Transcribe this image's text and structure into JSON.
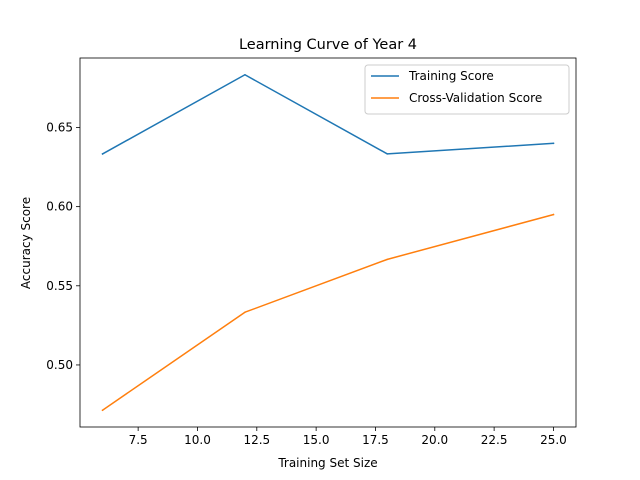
{
  "chart_data": {
    "type": "line",
    "title": "Learning Curve of Year 4",
    "xlabel": "Training Set Size",
    "ylabel": "Accuracy Score",
    "x": [
      6,
      12,
      18,
      25
    ],
    "series": [
      {
        "name": "Training Score",
        "color": "#1f77b4",
        "values": [
          0.6333,
          0.6833,
          0.6333,
          0.64
        ]
      },
      {
        "name": "Cross-Validation Score",
        "color": "#ff7f0e",
        "values": [
          0.4714,
          0.5333,
          0.5667,
          0.595
        ]
      }
    ],
    "xlim": [
      5.05,
      25.95
    ],
    "ylim": [
      0.4608,
      0.6939
    ],
    "x_ticks": [
      7.5,
      10.0,
      12.5,
      15.0,
      17.5,
      20.0,
      22.5,
      25.0
    ],
    "x_tick_labels": [
      "7.5",
      "10.0",
      "12.5",
      "15.0",
      "17.5",
      "20.0",
      "22.5",
      "25.0"
    ],
    "y_ticks": [
      0.5,
      0.55,
      0.6,
      0.65
    ],
    "y_tick_labels": [
      "0.50",
      "0.55",
      "0.60",
      "0.65"
    ],
    "legend_position": "upper right",
    "grid": false
  }
}
